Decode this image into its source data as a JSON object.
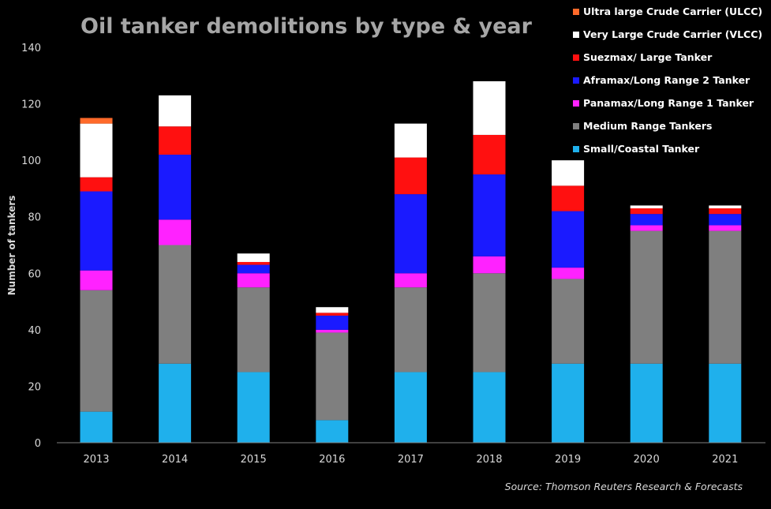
{
  "chart_data": {
    "type": "bar",
    "stacked": true,
    "title": "Oil tanker demolitions by type & year",
    "ylabel": "Number of tankers",
    "xlabel": "",
    "ylim": [
      0,
      140
    ],
    "yticks": [
      0,
      20,
      40,
      60,
      80,
      100,
      120,
      140
    ],
    "grid": false,
    "legend_position": "top-right",
    "categories": [
      "2013",
      "2014",
      "2015",
      "2016",
      "2017",
      "2018",
      "2019",
      "2020",
      "2021"
    ],
    "series": [
      {
        "name": "Small/Coastal Tanker",
        "color": "#1fb0ec",
        "values": [
          11,
          28,
          25,
          8,
          25,
          25,
          28,
          28,
          28
        ]
      },
      {
        "name": "Medium Range Tankers",
        "color": "#7f7f7f",
        "values": [
          43,
          42,
          30,
          31,
          30,
          35,
          30,
          47,
          47
        ]
      },
      {
        "name": "Panamax/Long Range 1 Tanker",
        "color": "#ff22ff",
        "values": [
          7,
          9,
          5,
          1,
          5,
          6,
          4,
          2,
          2
        ]
      },
      {
        "name": "Aframax/Long Range 2 Tanker",
        "color": "#1a1aff",
        "values": [
          28,
          23,
          3,
          5,
          28,
          29,
          20,
          4,
          4
        ]
      },
      {
        "name": "Suezmax/ Large Tanker",
        "color": "#ff1010",
        "values": [
          5,
          10,
          1,
          1,
          13,
          14,
          9,
          2,
          2
        ]
      },
      {
        "name": "Very Large Crude Carrier (VLCC)",
        "color": "#ffffff",
        "values": [
          19,
          11,
          3,
          2,
          12,
          19,
          9,
          1,
          1
        ]
      },
      {
        "name": "Ultra large Crude Carrier (ULCC)",
        "color": "#ff6a2a",
        "values": [
          2,
          0,
          0,
          0,
          0,
          0,
          0,
          0,
          0
        ]
      }
    ],
    "source": "Source: Thomson Reuters Research & Forecasts"
  }
}
